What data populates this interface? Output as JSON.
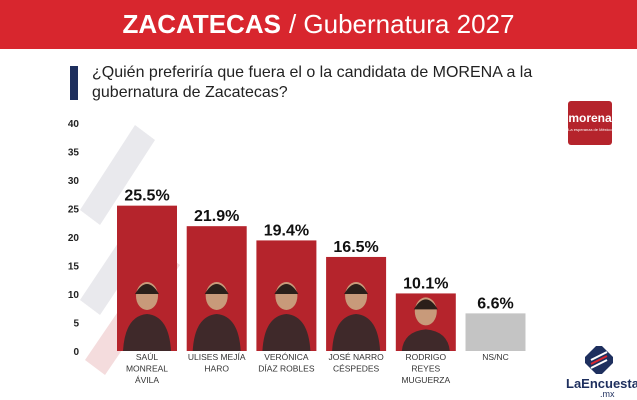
{
  "header": {
    "title_bold": "ZACATECAS",
    "title_rest": "/ Gubernatura 2027"
  },
  "question": "¿Quién preferiría que fuera el o la candidata de MORENA a la gubernatura de Zacatecas?",
  "logo": {
    "text": "morena",
    "tagline": "La esperanza de México"
  },
  "brand": {
    "name": "LaEncuesta",
    "tld": ".mx"
  },
  "colors": {
    "header": "#d8262e",
    "bar": "#b5242c",
    "bar_nsnc": "#c4c4c4",
    "accent": "#1e2f5e"
  },
  "chart_data": {
    "type": "bar",
    "title": "",
    "xlabel": "",
    "ylabel": "",
    "ylim": [
      0,
      40
    ],
    "yticks": [
      0,
      5,
      10,
      15,
      20,
      25,
      30,
      35,
      40
    ],
    "categories": [
      "SAÚL MONREAL ÁVILA",
      "ULISES MEJÍA HARO",
      "VERÓNICA DÍAZ ROBLES",
      "JOSÉ NARRO CÉSPEDES",
      "RODRIGO REYES MUGUERZA",
      "NS/NC"
    ],
    "category_lines": [
      [
        "SAÚL",
        "MONREAL",
        "ÁVILA"
      ],
      [
        "ULISES MEJÍA",
        "HARO"
      ],
      [
        "VERÓNICA",
        "DÍAZ ROBLES"
      ],
      [
        "JOSÉ NARRO",
        "CÉSPEDES"
      ],
      [
        "RODRIGO",
        "REYES",
        "MUGUERZA"
      ],
      [
        "NS/NC"
      ]
    ],
    "values": [
      25.5,
      21.9,
      19.4,
      16.5,
      10.1,
      6.6
    ],
    "data_labels": [
      "25.5%",
      "21.9%",
      "19.4%",
      "16.5%",
      "10.1%",
      "6.6%"
    ],
    "grid": false,
    "legend": "none"
  }
}
